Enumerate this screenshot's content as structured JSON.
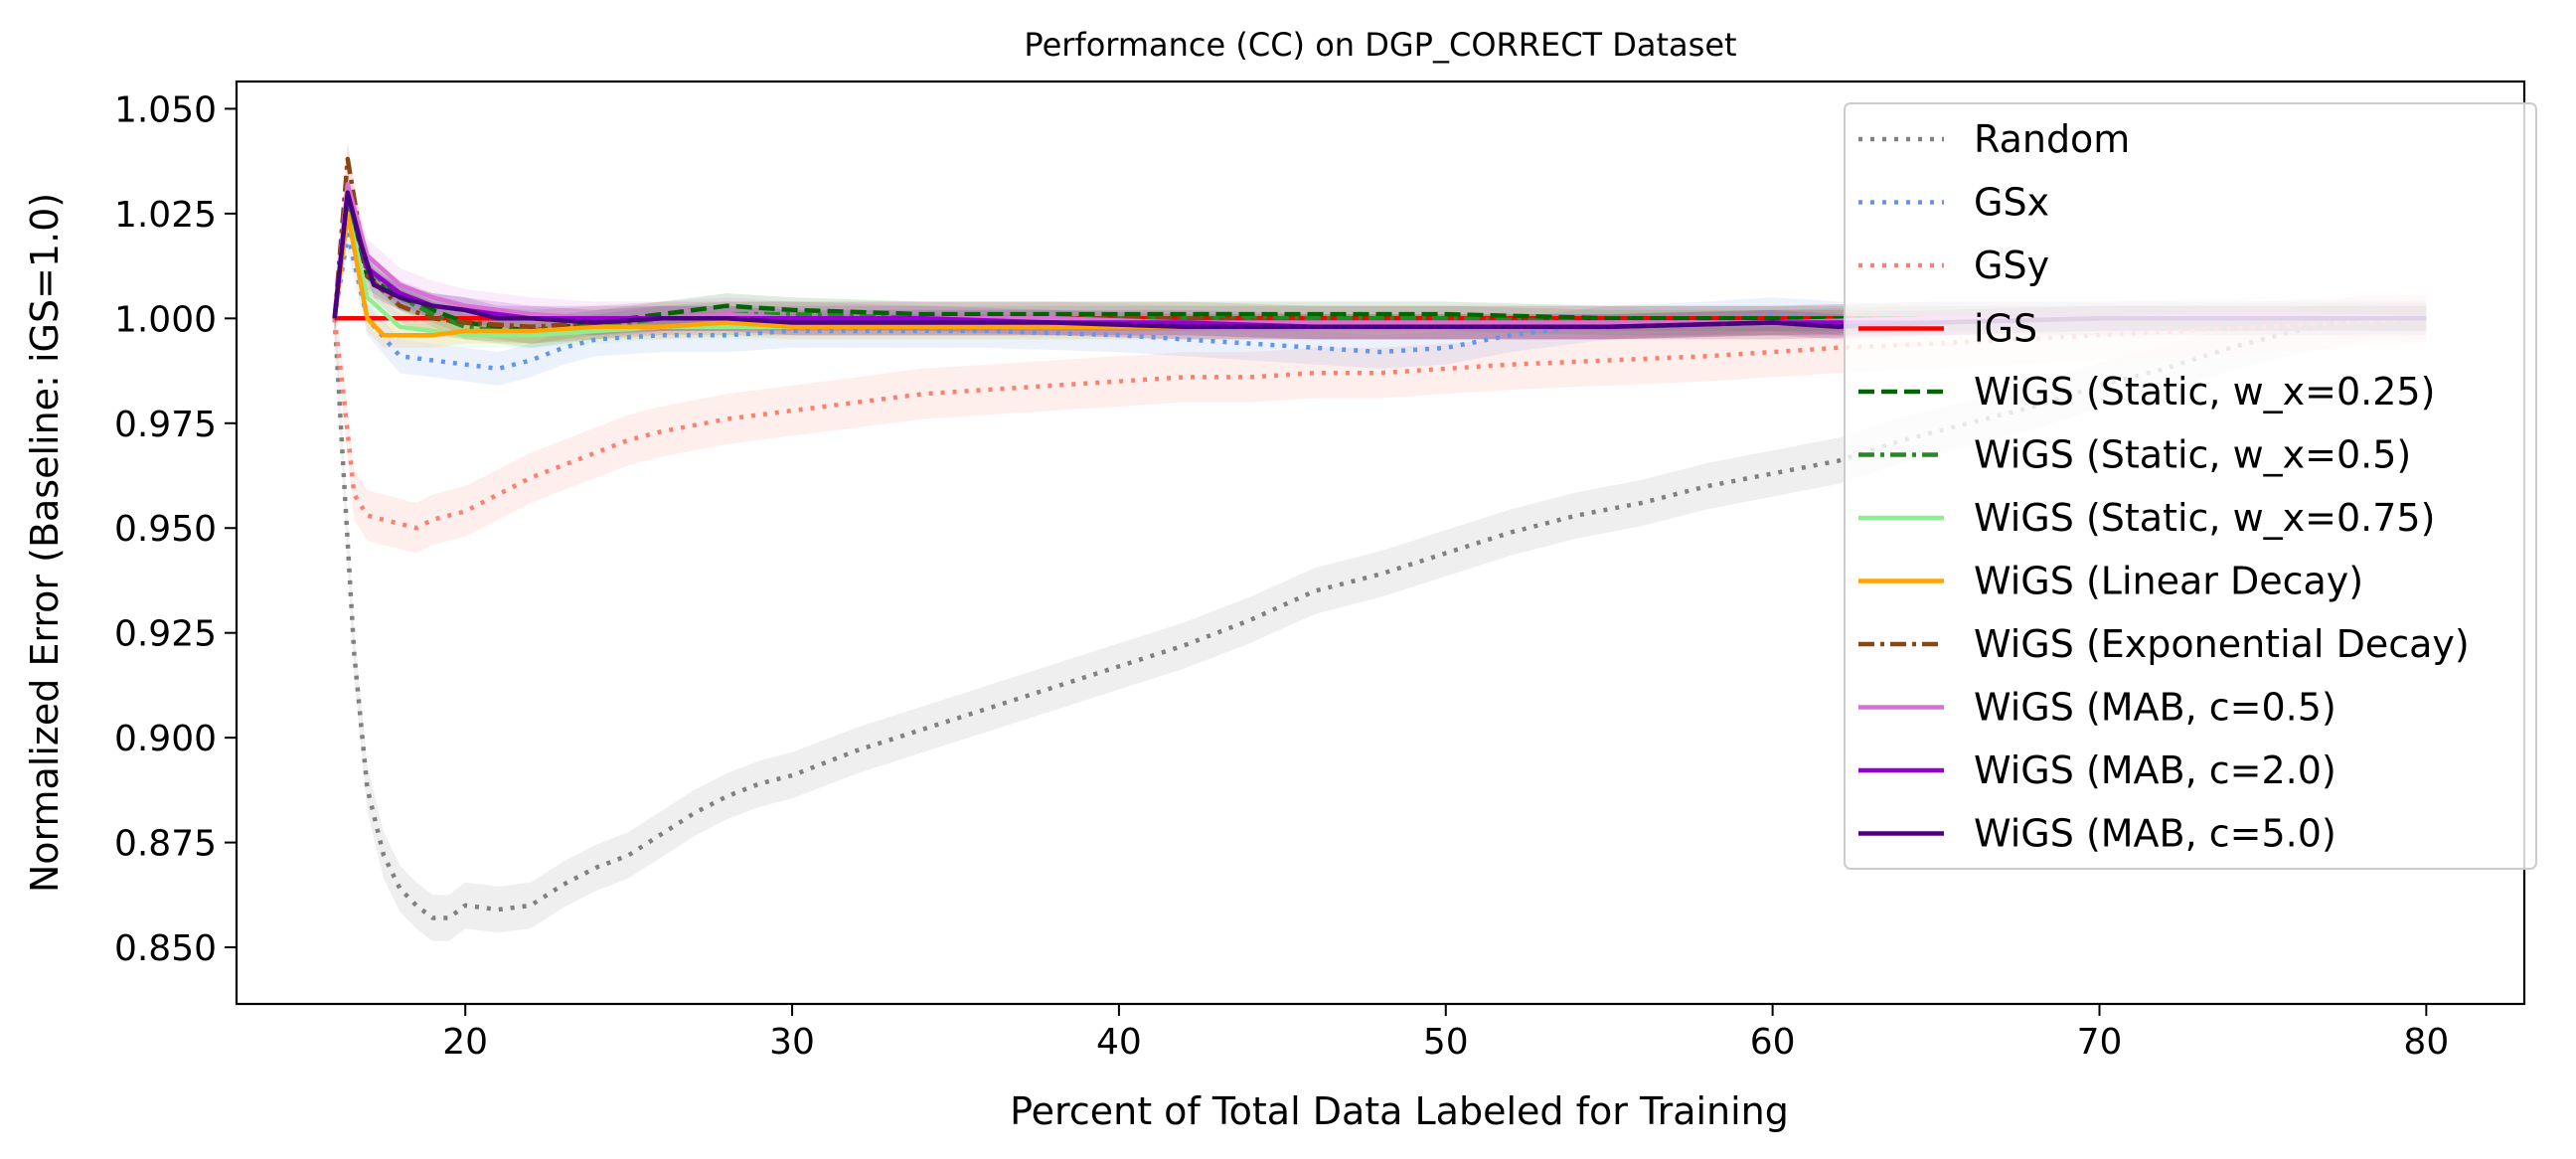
{
  "chart_data": {
    "type": "line",
    "title": "Performance (CC) on DGP_CORRECT Dataset",
    "xlabel": "Percent of Total Data Labeled for Training",
    "ylabel": "Normalized Error (Baseline: iGS=1.0)",
    "xlim": [
      13,
      83
    ],
    "ylim": [
      0.8365,
      1.0565
    ],
    "xticks": [
      20,
      30,
      40,
      50,
      60,
      70,
      80
    ],
    "xtick_labels": [
      "20",
      "30",
      "40",
      "50",
      "60",
      "70",
      "80"
    ],
    "yticks": [
      0.85,
      0.875,
      0.9,
      0.925,
      0.95,
      0.975,
      1.0,
      1.025,
      1.05
    ],
    "ytick_labels": [
      "0.850",
      "0.875",
      "0.900",
      "0.925",
      "0.950",
      "0.975",
      "1.000",
      "1.025",
      "1.050"
    ],
    "grid": false,
    "legend_position": "top-right",
    "series": [
      {
        "name": "Random",
        "color": "#808080",
        "dash": "dot",
        "x": [
          16,
          16.3,
          16.6,
          17,
          17.5,
          18,
          18.5,
          19,
          19.5,
          20,
          21,
          22,
          23,
          24,
          25,
          26,
          27,
          28,
          29,
          30,
          32,
          34,
          36,
          38,
          40,
          42,
          44,
          46,
          48,
          50,
          52,
          54,
          56,
          58,
          60,
          62,
          64,
          66,
          68,
          70,
          72,
          74,
          76,
          78,
          80
        ],
        "y": [
          1.0,
          0.96,
          0.92,
          0.888,
          0.872,
          0.864,
          0.86,
          0.857,
          0.857,
          0.86,
          0.859,
          0.86,
          0.865,
          0.869,
          0.872,
          0.877,
          0.882,
          0.886,
          0.889,
          0.891,
          0.897,
          0.902,
          0.907,
          0.912,
          0.917,
          0.922,
          0.928,
          0.935,
          0.939,
          0.944,
          0.949,
          0.953,
          0.956,
          0.96,
          0.963,
          0.966,
          0.971,
          0.975,
          0.979,
          0.984,
          0.988,
          0.993,
          0.997,
          1.0,
          1.0
        ],
        "band": 0.0055
      },
      {
        "name": "GSx",
        "color": "#6495ed",
        "dash": "dot",
        "x": [
          16,
          16.4,
          17,
          18,
          19,
          20,
          21,
          22,
          23,
          24,
          26,
          28,
          30,
          33,
          36,
          40,
          44,
          48,
          50,
          52,
          55,
          58,
          60,
          62,
          65,
          70,
          75,
          80
        ],
        "y": [
          1.0,
          1.02,
          1.0,
          0.991,
          0.99,
          0.989,
          0.988,
          0.99,
          0.993,
          0.995,
          0.996,
          0.996,
          0.997,
          0.997,
          0.997,
          0.996,
          0.994,
          0.992,
          0.993,
          0.996,
          0.999,
          1.0,
          1.001,
          1.0,
          1.0,
          1.0,
          1.0,
          1.0
        ],
        "band": 0.004
      },
      {
        "name": "GSy",
        "color": "#fa8072",
        "dash": "dot",
        "x": [
          16,
          16.3,
          16.6,
          17,
          17.5,
          18,
          18.5,
          19,
          20,
          21,
          22,
          23,
          24,
          25,
          26,
          28,
          30,
          32,
          34,
          36,
          38,
          40,
          42,
          44,
          46,
          48,
          50,
          52,
          55,
          58,
          60,
          62,
          65,
          70,
          75,
          80
        ],
        "y": [
          1.0,
          0.98,
          0.958,
          0.953,
          0.952,
          0.951,
          0.95,
          0.952,
          0.954,
          0.958,
          0.962,
          0.965,
          0.968,
          0.971,
          0.973,
          0.976,
          0.978,
          0.98,
          0.982,
          0.983,
          0.984,
          0.985,
          0.986,
          0.986,
          0.987,
          0.987,
          0.988,
          0.989,
          0.99,
          0.991,
          0.992,
          0.993,
          0.994,
          0.996,
          0.998,
          1.0
        ],
        "band": 0.006
      },
      {
        "name": "iGS",
        "color": "#ff0000",
        "dash": "solid",
        "x": [
          16,
          80
        ],
        "y": [
          1.0,
          1.0
        ],
        "band": 0
      },
      {
        "name": "WiGS (Static, w_x=0.25)",
        "color": "#006400",
        "dash": "dash",
        "x": [
          16,
          16.4,
          17,
          18,
          19,
          20,
          22,
          24,
          26,
          28,
          30,
          34,
          38,
          42,
          46,
          50,
          55,
          60,
          65,
          70,
          75,
          80
        ],
        "y": [
          1.0,
          1.03,
          1.01,
          1.005,
          1.002,
          0.999,
          0.997,
          0.999,
          1.001,
          1.003,
          1.002,
          1.001,
          1.001,
          1.001,
          1.001,
          1.001,
          1.0,
          1.0,
          1.0,
          1.0,
          1.0,
          1.0
        ],
        "band": 0.003
      },
      {
        "name": "WiGS (Static, w_x=0.5)",
        "color": "#228b22",
        "dash": "dashdot",
        "x": [
          16,
          16.4,
          17,
          18,
          19,
          20,
          22,
          24,
          26,
          28,
          30,
          34,
          38,
          42,
          46,
          50,
          55,
          60,
          65,
          70,
          75,
          80
        ],
        "y": [
          1.0,
          1.028,
          1.012,
          1.005,
          1.001,
          0.998,
          0.996,
          0.998,
          1.0,
          1.001,
          1.001,
          1.0,
          1.0,
          1.0,
          1.0,
          1.0,
          0.999,
          0.999,
          1.0,
          1.0,
          1.0,
          1.0
        ],
        "band": 0.003
      },
      {
        "name": "WiGS (Static, w_x=0.75)",
        "color": "#90ee90",
        "dash": "solid",
        "x": [
          16,
          16.4,
          17,
          18,
          19,
          20,
          22,
          24,
          26,
          28,
          30,
          34,
          38,
          42,
          46,
          50,
          55,
          60,
          65,
          70,
          75,
          80
        ],
        "y": [
          1.0,
          1.025,
          1.005,
          0.998,
          0.997,
          0.996,
          0.996,
          0.997,
          0.998,
          0.998,
          0.998,
          0.998,
          0.998,
          0.998,
          0.998,
          0.998,
          0.999,
          0.999,
          1.0,
          1.0,
          1.001,
          1.0
        ],
        "band": 0.003
      },
      {
        "name": "WiGS (Linear Decay)",
        "color": "#ffa500",
        "dash": "solid",
        "x": [
          16,
          16.4,
          17,
          17.5,
          18,
          19,
          20,
          22,
          24,
          26,
          28,
          30,
          34,
          38,
          42,
          46,
          50,
          55,
          60,
          65,
          70,
          75,
          80
        ],
        "y": [
          1.0,
          1.025,
          1.0,
          0.996,
          0.996,
          0.996,
          0.997,
          0.997,
          0.998,
          0.998,
          0.999,
          0.998,
          0.998,
          0.998,
          0.998,
          0.998,
          0.998,
          0.998,
          0.999,
          0.999,
          1.0,
          1.0,
          1.0
        ],
        "band": 0.003
      },
      {
        "name": "WiGS (Exponential Decay)",
        "color": "#8b4513",
        "dash": "dashdot",
        "x": [
          16,
          16.4,
          17,
          18,
          19,
          20,
          22,
          24,
          26,
          28,
          30,
          34,
          38,
          42,
          46,
          50,
          55,
          60,
          65,
          70,
          75,
          80
        ],
        "y": [
          1.0,
          1.038,
          1.01,
          1.003,
          1.0,
          0.999,
          0.998,
          0.999,
          1.0,
          1.0,
          1.0,
          1.0,
          1.0,
          1.0,
          0.999,
          0.999,
          0.999,
          0.999,
          1.0,
          1.0,
          1.0,
          1.0
        ],
        "band": 0.004
      },
      {
        "name": "WiGS (MAB, c=0.5)",
        "color": "#da70d6",
        "dash": "solid",
        "x": [
          16,
          16.4,
          17,
          18,
          19,
          20,
          22,
          24,
          26,
          28,
          30,
          34,
          38,
          42,
          46,
          50,
          55,
          60,
          65,
          70,
          75,
          80
        ],
        "y": [
          1.0,
          1.032,
          1.015,
          1.008,
          1.005,
          1.003,
          1.001,
          1.0,
          1.0,
          1.001,
          1.0,
          1.0,
          1.0,
          0.999,
          0.999,
          0.999,
          0.999,
          0.999,
          1.0,
          1.0,
          1.001,
          1.0
        ],
        "band": 0.004
      },
      {
        "name": "WiGS (MAB, c=2.0)",
        "color": "#9400d3",
        "dash": "solid",
        "x": [
          16,
          16.4,
          17,
          18,
          19,
          20,
          22,
          24,
          26,
          28,
          30,
          34,
          38,
          42,
          46,
          50,
          55,
          60,
          65,
          70,
          75,
          80
        ],
        "y": [
          1.0,
          1.03,
          1.012,
          1.006,
          1.003,
          1.002,
          1.0,
          1.0,
          1.0,
          1.0,
          1.0,
          1.0,
          0.999,
          0.999,
          0.998,
          0.998,
          0.998,
          0.999,
          0.999,
          1.0,
          1.0,
          1.0
        ],
        "band": 0.003
      },
      {
        "name": "WiGS (MAB, c=5.0)",
        "color": "#4b0082",
        "dash": "solid",
        "x": [
          16,
          16.4,
          16.8,
          17.2,
          18,
          19,
          20,
          21,
          22,
          24,
          26,
          28,
          30,
          34,
          38,
          42,
          46,
          50,
          55,
          60,
          62,
          65,
          70,
          75,
          80
        ],
        "y": [
          1.0,
          1.03,
          1.018,
          1.008,
          1.005,
          1.003,
          1.002,
          1.0,
          1.0,
          0.999,
          1.0,
          1.0,
          0.999,
          0.999,
          0.999,
          0.998,
          0.998,
          0.998,
          0.998,
          0.999,
          0.998,
          0.999,
          1.0,
          1.0,
          1.0
        ],
        "band": 0.003
      }
    ]
  }
}
